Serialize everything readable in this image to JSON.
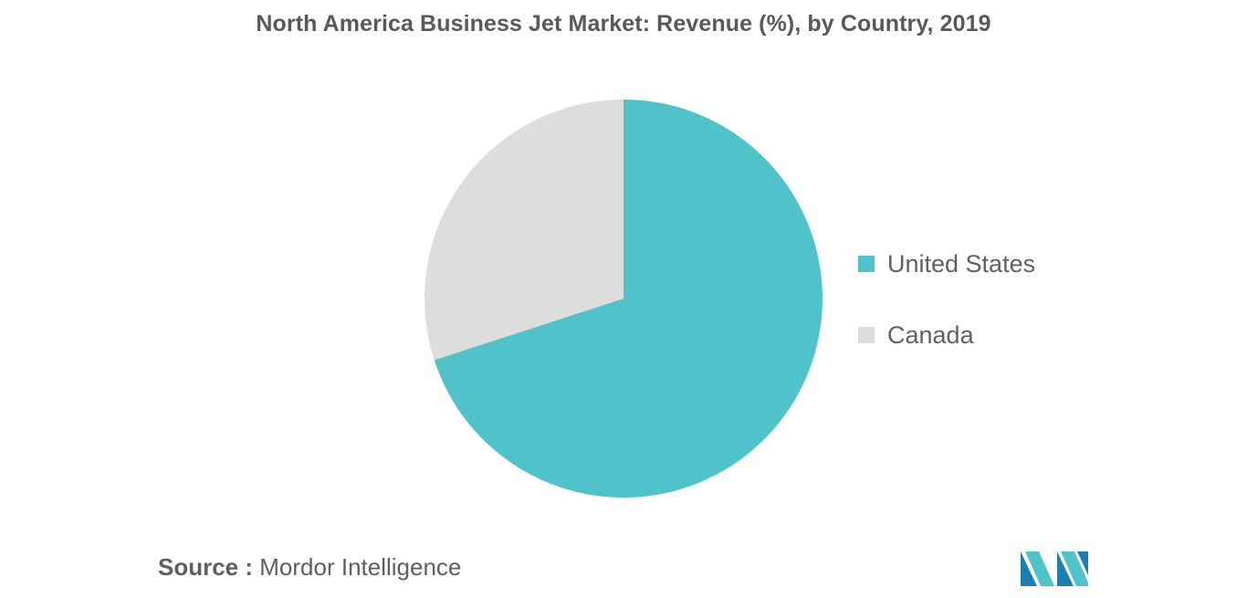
{
  "chart_data": {
    "type": "pie",
    "title": "North America Business Jet Market: Revenue (%), by Country, 2019",
    "slices": [
      {
        "label": "United States",
        "value": 70,
        "color": "#50c3ca"
      },
      {
        "label": "Canada",
        "value": 30,
        "color": "#dddddd"
      }
    ],
    "legend_position": "right"
  },
  "source": {
    "label": "Source :",
    "text": "Mordor Intelligence"
  },
  "logo": {
    "name": "mordor-intelligence-logo",
    "colors": [
      "#1c7fb3",
      "#50c3ca"
    ]
  }
}
